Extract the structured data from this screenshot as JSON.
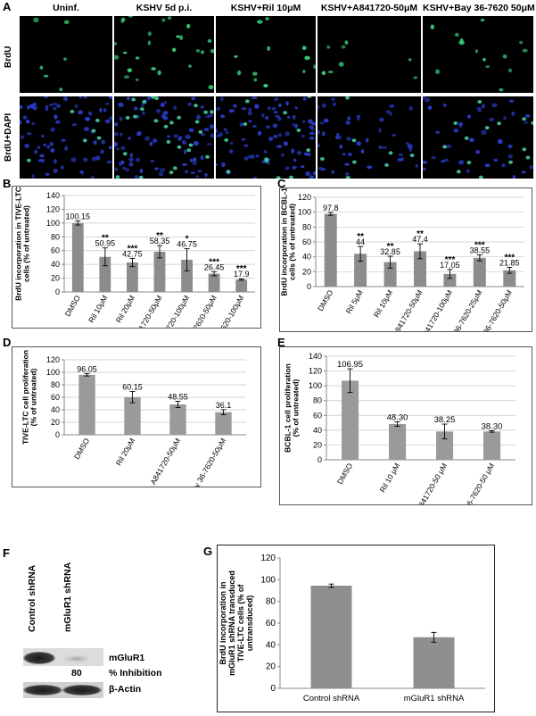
{
  "panel_labels": {
    "A": "A",
    "B": "B",
    "C": "C",
    "D": "D",
    "E": "E",
    "F": "F",
    "G": "G"
  },
  "micrographs": {
    "column_headers": [
      "Uninf.",
      "KSHV 5d p.i.",
      "KSHV+Ril 10μM",
      "KSHV+A841720-50μM",
      "KSHV+Bay 36-7620 50μM"
    ],
    "row_labels": [
      "BrdU",
      "BrdU+DAPI"
    ],
    "colors": {
      "brdu": "#38d07a",
      "dapi": "#2a3cc8",
      "background": "#000000"
    }
  },
  "chart_data": [
    {
      "id": "B",
      "type": "bar",
      "categories": [
        "DMSO",
        "Ril 10μM",
        "Ril 20μM",
        "A841720-50μM",
        "A841720-100μM",
        "Bay 36-7620-50μM",
        "Bay 36-7620-100μM"
      ],
      "values": [
        100.15,
        50.95,
        42.75,
        58.35,
        46.75,
        26.45,
        17.9
      ],
      "value_labels": [
        "100.15",
        "50.95",
        "42.75",
        "58.35",
        "46.75",
        "26.45",
        "17.9"
      ],
      "errors": [
        3,
        13,
        6,
        9,
        16,
        3,
        1
      ],
      "significance": [
        "",
        "**",
        "***",
        "**",
        "*",
        "***",
        "***"
      ],
      "ylabel": "BrdU incorporation in TIVE-LTC cells (% of untreated)",
      "ylim": [
        0,
        140
      ],
      "yticks": [
        0,
        20,
        40,
        60,
        80,
        100,
        120,
        140
      ],
      "grid": true,
      "bar_color": "#8c8c8c"
    },
    {
      "id": "C",
      "type": "bar",
      "categories": [
        "DMSO",
        "Ril 5μM",
        "Ril 10μM",
        "A841720-50μM",
        "A841720-100μM",
        "Bay 36-7620-25μM",
        "Bay 36-7620-50μM"
      ],
      "values": [
        97.8,
        44,
        32.85,
        47.4,
        17.05,
        38.55,
        21.85
      ],
      "value_labels": [
        "97.8",
        "44",
        "32.85",
        "47.4",
        "17.05",
        "38.55",
        "21.85"
      ],
      "errors": [
        2,
        10,
        8,
        10,
        6,
        4,
        4
      ],
      "significance": [
        "",
        "**",
        "**",
        "**",
        "***",
        "***",
        "***"
      ],
      "ylabel": "BrdU incorporation in BCBL-1 cells (% of untreated)",
      "ylim": [
        0,
        120
      ],
      "yticks": [
        0,
        20,
        40,
        60,
        80,
        100,
        120
      ],
      "grid": true,
      "bar_color": "#8c8c8c"
    },
    {
      "id": "D",
      "type": "bar",
      "categories": [
        "DMSO",
        "Ril 20μM",
        "A841720-50μM",
        "Bay 36-7620-50μM"
      ],
      "values": [
        96.05,
        60.15,
        48.55,
        36.1
      ],
      "value_labels": [
        "96.05",
        "60.15",
        "48.55",
        "36.1"
      ],
      "errors": [
        2,
        9,
        5,
        4
      ],
      "significance": [
        "",
        "",
        "",
        ""
      ],
      "ylabel": "TIVE-LTC cell proliferation (% of untreated)",
      "ylim": [
        0,
        120
      ],
      "yticks": [
        0,
        20,
        40,
        60,
        80,
        100,
        120
      ],
      "grid": true,
      "bar_color": "#9a9a9a"
    },
    {
      "id": "E",
      "type": "bar",
      "categories": [
        "DMSO",
        "Ril 10 μM",
        "A841720-50 μM",
        "Bay 36-7620-50 μM"
      ],
      "values": [
        106.95,
        48.3,
        38.25,
        38.3
      ],
      "value_labels": [
        "106.95",
        "48.30",
        "38.25",
        "38.30"
      ],
      "errors": [
        16,
        3,
        10,
        1
      ],
      "significance": [
        "",
        "",
        "",
        ""
      ],
      "ylabel": "BCBL-1 cell proliferation (% of untreated)",
      "ylim": [
        0,
        140
      ],
      "yticks": [
        0,
        20,
        40,
        60,
        80,
        100,
        120,
        140
      ],
      "grid": true,
      "bar_color": "#9a9a9a"
    },
    {
      "id": "G",
      "type": "bar",
      "categories": [
        "Control shRNA",
        "mGluR1 shRNA"
      ],
      "values": [
        94.5,
        47
      ],
      "value_labels": [
        "",
        ""
      ],
      "errors": [
        1.5,
        4.5
      ],
      "significance": [
        "",
        ""
      ],
      "ylabel": "BrdU incorporation in mGluR1 shRNA transduced TIVE-LTC cells (% of untransduced)",
      "ylim": [
        0,
        120
      ],
      "yticks": [
        0,
        20,
        40,
        60,
        80,
        100,
        120
      ],
      "grid": false,
      "bar_color": "#8f8f8f"
    }
  ],
  "blot": {
    "lane_labels": [
      "Control shRNA",
      "mGluR1 shRNA"
    ],
    "protein_label": "mGluR1",
    "inhibition_value": "80",
    "inhibition_label": "% Inhibition",
    "loading_label": "β-Actin"
  }
}
